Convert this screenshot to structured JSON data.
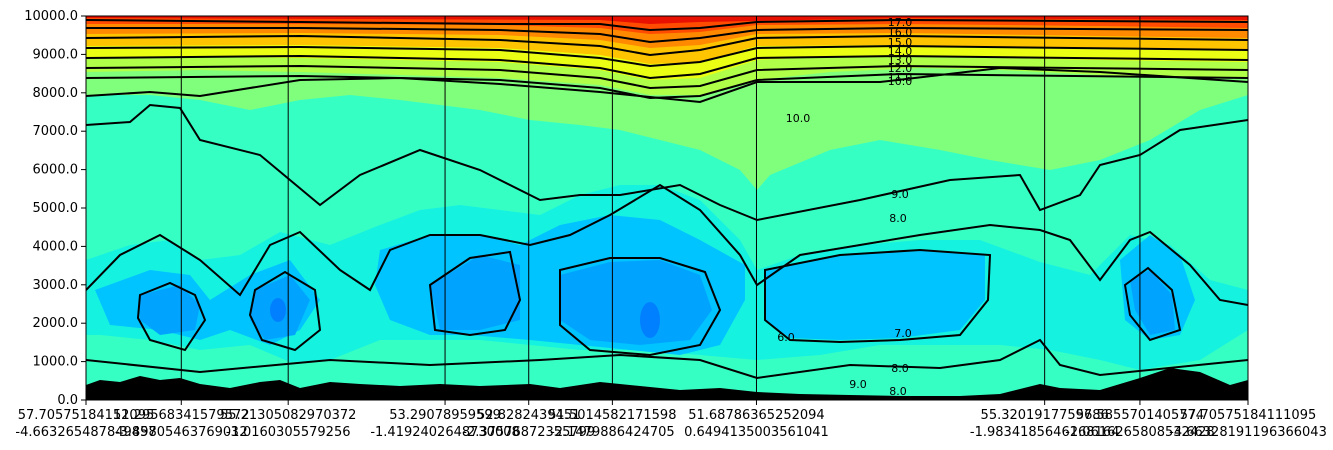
{
  "chart_data": {
    "type": "contourf",
    "title": "",
    "xlabel": "",
    "ylabel": "",
    "ylim": [
      0,
      10000
    ],
    "yticks": [
      0,
      1000,
      2000,
      3000,
      4000,
      5000,
      6000,
      7000,
      8000,
      9000,
      10000
    ],
    "ytick_labels": [
      "0.0",
      "1000.0",
      "2000.0",
      "3000.0",
      "4000.0",
      "5000.0",
      "6000.0",
      "7000.0",
      "8000.0",
      "9000.0",
      "10000.0"
    ],
    "grid": false,
    "colormap": "jet",
    "terrain_color": "#000000",
    "section_positions": [
      0,
      0.082,
      0.174,
      0.309,
      0.381,
      0.453,
      0.577,
      0.825,
      0.907,
      1.0
    ],
    "x_tick_labels": [
      {
        "top": "57.70575184112095",
        "bottom": "-4.663265487849457"
      },
      {
        "top": "51.29568341579572",
        "bottom": "-3.89805463769012"
      },
      {
        "top": "55.21305082970372",
        "bottom": "-3.0160305579256"
      },
      {
        "top": "53.29078959599",
        "bottom": "-1.4192402648730008"
      },
      {
        "top": "52.8282439451",
        "bottom": "-2.37576872355799"
      },
      {
        "top": "51.5014582171598",
        "bottom": "-2.1479886424705"
      },
      {
        "top": "51.68786365252094",
        "bottom": "0.6494135003561041"
      },
      {
        "top": "55.3201917759786",
        "bottom": "-1.9834185646168164"
      },
      {
        "top": "56.5855701405774",
        "bottom": "-2.0616265808532428"
      },
      {
        "top": "57.70575184111095",
        "bottom": "-4.66328191196366043"
      }
    ],
    "contour_labels": [
      "17.0",
      "16.0",
      "15.0",
      "14.0",
      "13.0",
      "12.0",
      "11.0",
      "10.0",
      "10.0",
      "9.0",
      "8.0",
      "7.0",
      "8.0",
      "6.0",
      "9.0",
      "8.0"
    ],
    "levels_color": [
      {
        "level": 6,
        "color": "#0080ff"
      },
      {
        "level": 6.5,
        "color": "#00a4ff"
      },
      {
        "level": 7,
        "color": "#00c4ff"
      },
      {
        "level": 8,
        "color": "#16f2e0"
      },
      {
        "level": 9,
        "color": "#36ffc4"
      },
      {
        "level": 10,
        "color": "#80ff7c"
      },
      {
        "level": 12,
        "color": "#b0ff48"
      },
      {
        "level": 13,
        "color": "#eaff14"
      },
      {
        "level": 14,
        "color": "#ffc400"
      },
      {
        "level": 15,
        "color": "#ff8a00"
      },
      {
        "level": 16,
        "color": "#ff4c00"
      },
      {
        "level": 17,
        "color": "#e81000"
      }
    ]
  }
}
